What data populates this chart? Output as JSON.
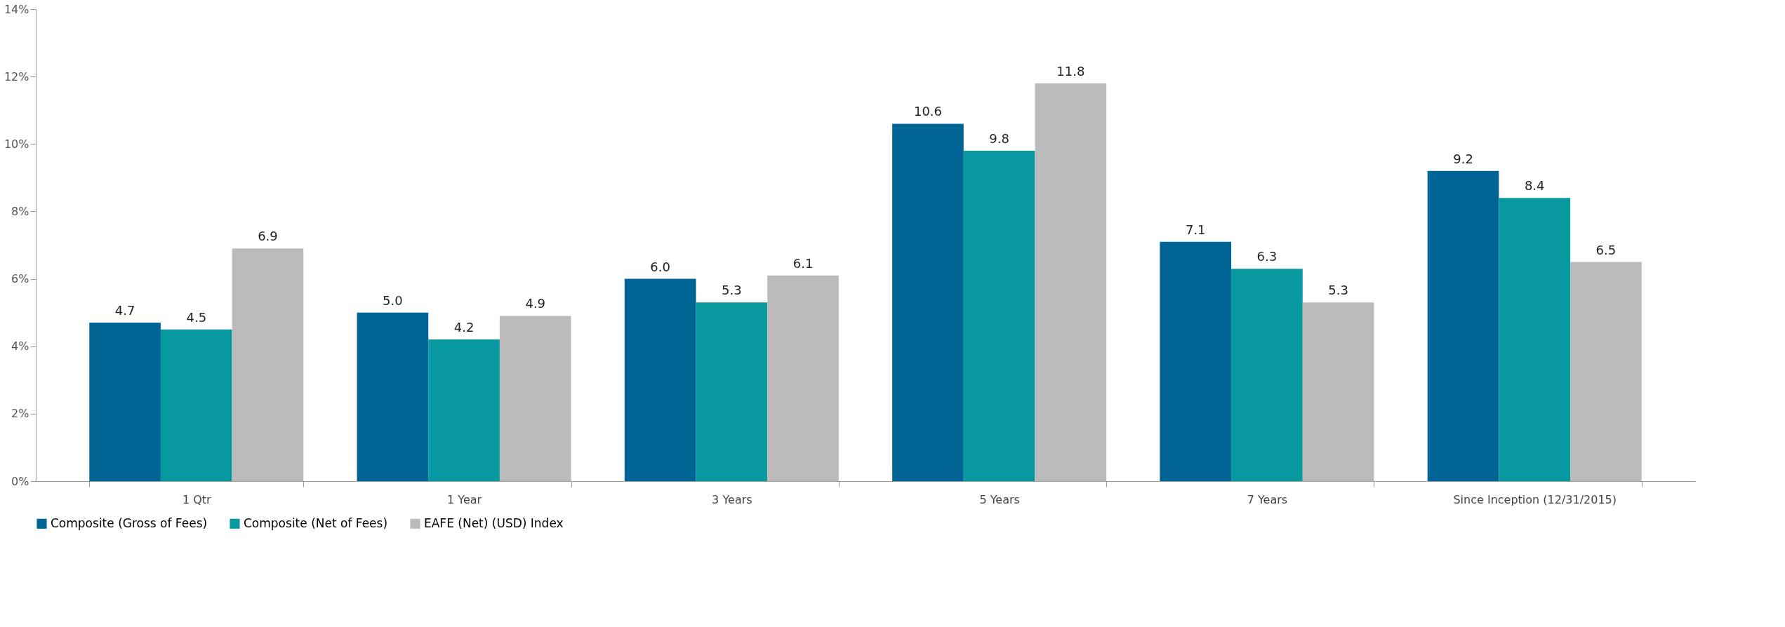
{
  "chart_data": {
    "type": "bar",
    "categories": [
      "1 Qtr",
      "1 Year",
      "3 Years",
      "5 Years",
      "7 Years",
      "Since Inception (12/31/2015)"
    ],
    "series": [
      {
        "name": "Composite (Gross of Fees)",
        "color": "#006595",
        "values": [
          4.7,
          5.0,
          6.0,
          10.6,
          7.1,
          9.2
        ],
        "value_labels": [
          "4.7",
          "5.0",
          "6.0",
          "10.6",
          "7.1",
          "9.2"
        ]
      },
      {
        "name": "Composite (Net of Fees)",
        "color": "#0798a0",
        "values": [
          4.5,
          4.2,
          5.3,
          9.8,
          6.3,
          8.4
        ],
        "value_labels": [
          "4.5",
          "4.2",
          "5.3",
          "9.8",
          "6.3",
          "8.4"
        ]
      },
      {
        "name": "EAFE (Net) (USD) Index",
        "color": "#bbbbbb",
        "values": [
          6.9,
          4.9,
          6.1,
          11.8,
          5.3,
          6.5
        ],
        "value_labels": [
          "6.9",
          "4.9",
          "6.1",
          "11.8",
          "5.3",
          "6.5"
        ]
      }
    ],
    "ylim": [
      0,
      14
    ],
    "yticks": [
      {
        "value": 0,
        "label": "0%"
      },
      {
        "value": 2,
        "label": "2%"
      },
      {
        "value": 4,
        "label": "4%"
      },
      {
        "value": 6,
        "label": "6%"
      },
      {
        "value": 8,
        "label": "8%"
      },
      {
        "value": 10,
        "label": "10%"
      },
      {
        "value": 12,
        "label": "12%"
      },
      {
        "value": 14,
        "label": "14%"
      }
    ],
    "grid": false,
    "legend": "bottom"
  }
}
